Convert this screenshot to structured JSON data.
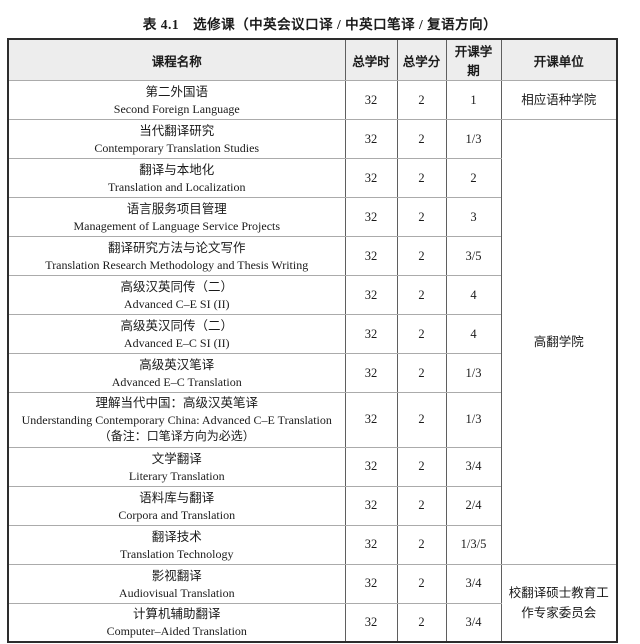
{
  "title": "表 4.1　选修课（中英会议口译 / 中英口笔译 / 复语方向）",
  "table": {
    "headers": [
      "课程名称",
      "总学时",
      "总学分",
      "开课学期",
      "开课单位"
    ],
    "rows": [
      {
        "name_zh": "第二外国语",
        "name_en": "Second Foreign Language",
        "hours": "32",
        "credits": "2",
        "semester": "1",
        "unit": "相应语种学院",
        "unit_rowspan": 1
      },
      {
        "name_zh": "当代翻译研究",
        "name_en": "Contemporary Translation Studies",
        "hours": "32",
        "credits": "2",
        "semester": "1/3",
        "unit": "高翻学院",
        "unit_rowspan": 11
      },
      {
        "name_zh": "翻译与本地化",
        "name_en": "Translation and Localization",
        "hours": "32",
        "credits": "2",
        "semester": "2"
      },
      {
        "name_zh": "语言服务项目管理",
        "name_en": "Management of Language Service Projects",
        "hours": "32",
        "credits": "2",
        "semester": "3"
      },
      {
        "name_zh": "翻译研究方法与论文写作",
        "name_en": "Translation Research Methodology and Thesis Writing",
        "hours": "32",
        "credits": "2",
        "semester": "3/5"
      },
      {
        "name_zh": "高级汉英同传（二）",
        "name_en": "Advanced C–E SI (II)",
        "hours": "32",
        "credits": "2",
        "semester": "4"
      },
      {
        "name_zh": "高级英汉同传（二）",
        "name_en": "Advanced E–C SI (II)",
        "hours": "32",
        "credits": "2",
        "semester": "4"
      },
      {
        "name_zh": "高级英汉笔译",
        "name_en": "Advanced E–C Translation",
        "hours": "32",
        "credits": "2",
        "semester": "1/3"
      },
      {
        "name_zh": "理解当代中国：高级汉英笔译",
        "name_en": "Understanding Contemporary China: Advanced C–E Translation",
        "name_note": "（备注：口笔译方向为必选）",
        "hours": "32",
        "credits": "2",
        "semester": "1/3"
      },
      {
        "name_zh": "文学翻译",
        "name_en": "Literary Translation",
        "hours": "32",
        "credits": "2",
        "semester": "3/4"
      },
      {
        "name_zh": "语料库与翻译",
        "name_en": "Corpora and Translation",
        "hours": "32",
        "credits": "2",
        "semester": "2/4"
      },
      {
        "name_zh": "翻译技术",
        "name_en": "Translation Technology",
        "hours": "32",
        "credits": "2",
        "semester": "1/3/5"
      },
      {
        "name_zh": "影视翻译",
        "name_en": "Audiovisual Translation",
        "hours": "32",
        "credits": "2",
        "semester": "3/4",
        "unit": "校翻译硕士教育工作专家委员会",
        "unit_rowspan": 2
      },
      {
        "name_zh": "计算机辅助翻译",
        "name_en": "Computer–Aided Translation",
        "hours": "32",
        "credits": "2",
        "semester": "3/4"
      }
    ]
  }
}
